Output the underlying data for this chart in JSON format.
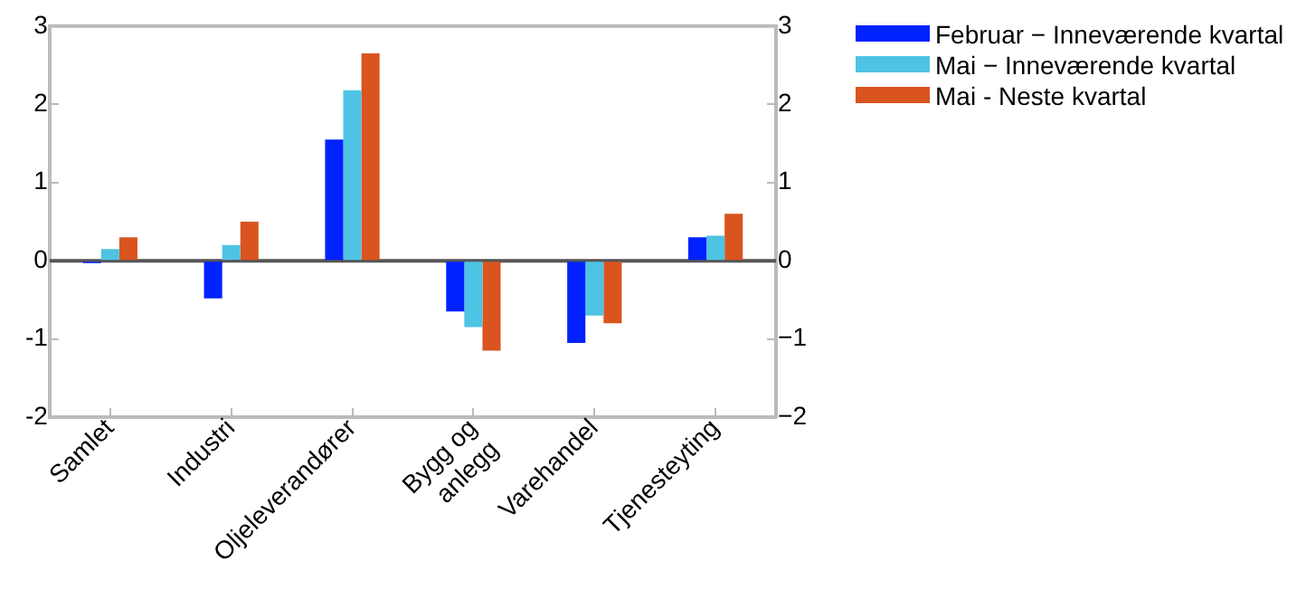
{
  "chart_data": {
    "type": "bar",
    "categories": [
      "Samlet",
      "Industri",
      "Oljeleverandører",
      "Bygg og\nanlegg",
      "Varehandel",
      "Tjenesteyting"
    ],
    "series": [
      {
        "name": "Februar − Inneværende kvartal",
        "color": "#0022ff",
        "values": [
          -0.03,
          -0.48,
          1.55,
          -0.65,
          -1.05,
          0.3
        ]
      },
      {
        "name": "Mai − Inneværende kvartal",
        "color": "#4fc3e3",
        "values": [
          0.15,
          0.2,
          2.18,
          -0.85,
          -0.7,
          0.32
        ]
      },
      {
        "name": "Mai - Neste kvartal",
        "color": "#d9541e",
        "values": [
          0.3,
          0.5,
          2.65,
          -1.15,
          -0.8,
          0.6
        ]
      }
    ],
    "ylim": [
      -2,
      3
    ],
    "yticks": [
      -2,
      -1,
      0,
      1,
      2,
      3
    ],
    "y2lim": [
      -2,
      3
    ],
    "y2ticks": [
      {
        "value": -2,
        "label": "−2"
      },
      {
        "value": -1,
        "label": "−1"
      },
      0,
      1,
      2,
      3
    ],
    "ref_lines": [
      {
        "axis": "y",
        "value": 0,
        "color": "#555555"
      }
    ],
    "legend": "top right"
  }
}
